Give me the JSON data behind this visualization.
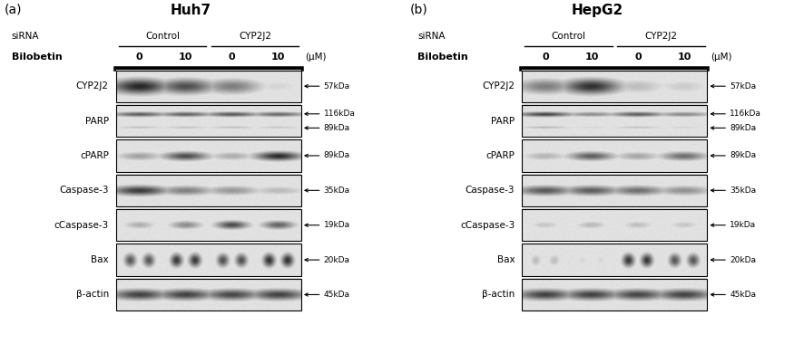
{
  "panel_a_title": "Huh7",
  "panel_b_title": "HepG2",
  "panel_a_label": "(a)",
  "panel_b_label": "(b)",
  "sirna_label": "siRNA",
  "bilobetin_label": "Bilobetin",
  "um_label": "(μM)",
  "control_label": "Control",
  "cyp2j2_label": "CYP2J2",
  "dose_labels": [
    "0",
    "10",
    "0",
    "10"
  ],
  "protein_labels": [
    "CYP2J2",
    "PARP",
    "cPARP",
    "Caspase-3",
    "cCaspase-3",
    "Bax",
    "β-actin"
  ],
  "mw_labels": {
    "CYP2J2": [
      "57kDa"
    ],
    "PARP": [
      "116kDa",
      "89kDa"
    ],
    "cPARP": [
      "89kDa"
    ],
    "Caspase-3": [
      "35kDa"
    ],
    "cCaspase-3": [
      "19kDa"
    ],
    "Bax": [
      "20kDa"
    ],
    "β-actin": [
      "45kDa"
    ]
  },
  "panel_a_bands": {
    "CYP2J2": [
      0.92,
      0.75,
      0.55,
      0.18
    ],
    "PARP": [
      0.7,
      0.68,
      0.72,
      0.65
    ],
    "cPARP": [
      0.4,
      0.75,
      0.35,
      0.9
    ],
    "Caspase-3": [
      0.85,
      0.55,
      0.45,
      0.3
    ],
    "cCaspase-3": [
      0.35,
      0.5,
      0.78,
      0.68
    ],
    "Bax": [
      0.72,
      0.85,
      0.75,
      0.88
    ],
    "β-actin": [
      0.82,
      0.82,
      0.8,
      0.82
    ]
  },
  "panel_b_bands": {
    "CYP2J2": [
      0.55,
      0.88,
      0.28,
      0.22
    ],
    "PARP": [
      0.8,
      0.5,
      0.7,
      0.52
    ],
    "cPARP": [
      0.32,
      0.68,
      0.38,
      0.62
    ],
    "Caspase-3": [
      0.72,
      0.7,
      0.62,
      0.48
    ],
    "cCaspase-3": [
      0.25,
      0.3,
      0.28,
      0.25
    ],
    "Bax": [
      0.28,
      0.18,
      0.85,
      0.72
    ],
    "β-actin": [
      0.82,
      0.82,
      0.8,
      0.82
    ]
  },
  "bg_color": "#ffffff"
}
